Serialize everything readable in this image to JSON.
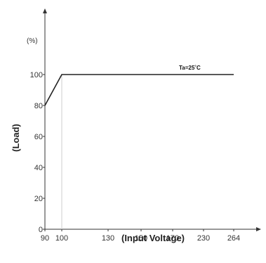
{
  "chart_data": {
    "type": "line",
    "title": "",
    "xlabel": "(Input Voltage)",
    "ylabel": "(Load)",
    "y_unit": "(%)",
    "x_ticks": [
      "90",
      "100",
      "130",
      "150",
      "170",
      "230",
      "264"
    ],
    "y_ticks": [
      "0",
      "20",
      "40",
      "60",
      "80",
      "100"
    ],
    "ylim": [
      0,
      100
    ],
    "series": [
      {
        "x": [
          "90",
          "100",
          "264"
        ],
        "values": [
          80,
          100,
          100
        ]
      }
    ],
    "annotation": "Ta=25˚C",
    "reference_line_x": "100",
    "grid": false
  },
  "colors": {
    "line": "#222222",
    "axis": "#333333",
    "reference": "#cccccc"
  }
}
